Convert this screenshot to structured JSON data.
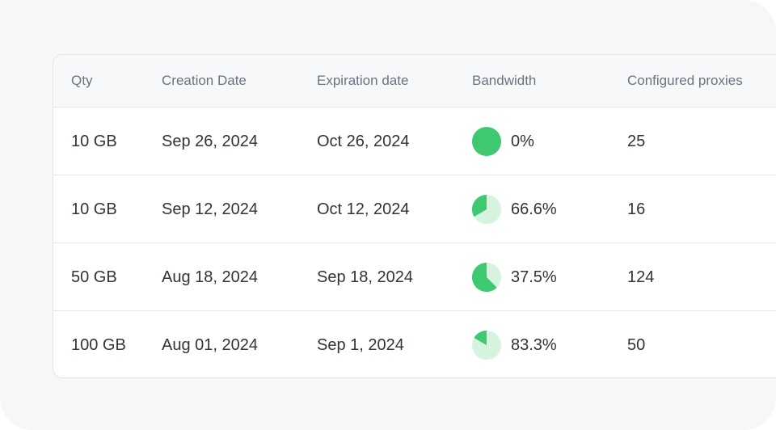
{
  "table": {
    "headers": [
      "Qty",
      "Creation Date",
      "Expiration date",
      "Bandwidth",
      "Configured proxies"
    ],
    "rows": [
      [
        "10 GB",
        "Sep 26, 2024",
        "Oct 26, 2024",
        {
          "value": 0,
          "label": "0%"
        },
        "25"
      ],
      [
        "10 GB",
        "Sep 12, 2024",
        "Oct 12, 2024",
        {
          "value": 66.6,
          "label": "66.6%"
        },
        "16"
      ],
      [
        "50 GB",
        "Aug 18, 2024",
        "Sep 18, 2024",
        {
          "value": 37.5,
          "label": "37.5%"
        },
        "124"
      ],
      [
        "100 GB",
        "Aug 01, 2024",
        "Sep 1, 2024",
        {
          "value": 83.3,
          "label": "83.3%"
        },
        "50"
      ]
    ]
  }
}
